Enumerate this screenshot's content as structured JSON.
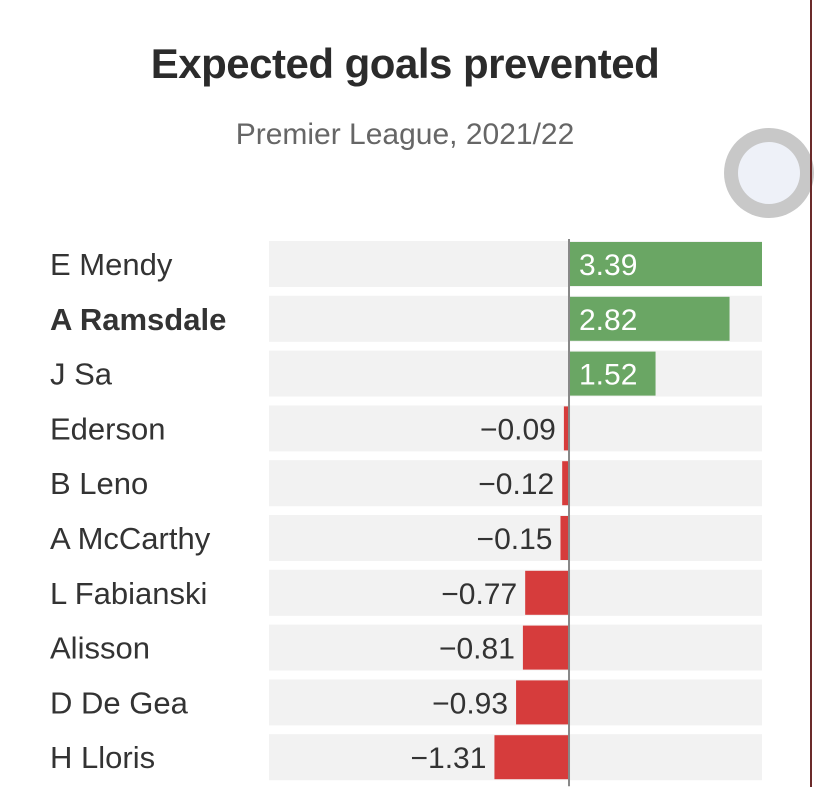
{
  "chart_data": {
    "type": "bar",
    "orientation": "horizontal",
    "title": "Expected goals prevented",
    "subtitle": "Premier League, 2021/22",
    "categories": [
      "E Mendy",
      "A Ramsdale",
      "J Sa",
      "Ederson",
      "B Leno",
      "A McCarthy",
      "L Fabianski",
      "Alisson",
      "D De Gea",
      "H Lloris"
    ],
    "highlighted_category": "A Ramsdale",
    "values": [
      3.39,
      2.82,
      1.52,
      -0.09,
      -0.12,
      -0.15,
      -0.77,
      -0.81,
      -0.93,
      -1.31
    ],
    "value_labels": [
      "3.39",
      "2.82",
      "1.52",
      "−0.09",
      "−0.12",
      "−0.15",
      "−0.77",
      "−0.81",
      "−0.93",
      "−1.31"
    ],
    "xlim": [
      -5.27,
      3.39
    ],
    "grid": false,
    "legend": "none",
    "colors": {
      "positive": "#6aa664",
      "negative": "#d63c3c",
      "baseline": "#888888",
      "row_background": "#f2f2f2"
    }
  },
  "overlay": {
    "icon": "scroll-indicator-icon"
  }
}
